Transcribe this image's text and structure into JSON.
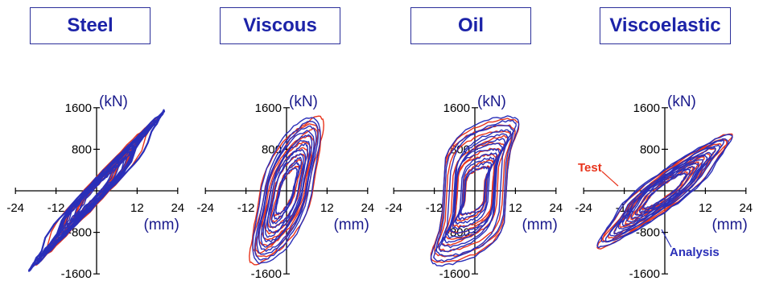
{
  "chart_data": [
    {
      "type": "line",
      "title": "Steel",
      "xlabel": "(mm)",
      "ylabel": "(kN)",
      "xlim": [
        -24,
        24
      ],
      "ylim": [
        -1600,
        1600
      ],
      "x_ticks": [
        "-24",
        "-12",
        "12",
        "24"
      ],
      "y_ticks": [
        "1600",
        "800",
        "-800",
        "-1600"
      ],
      "series": [
        {
          "color": "#e8341c",
          "max_displacement": 18,
          "max_force": 1450,
          "loops": 9,
          "skew": 0.8
        },
        {
          "color": "#2a2fb8",
          "max_displacement": 20,
          "max_force": 1550,
          "loops": 12,
          "skew": 0.82
        }
      ]
    },
    {
      "type": "line",
      "title": "Viscous",
      "xlabel": "(mm)",
      "ylabel": "(kN)",
      "xlim": [
        -24,
        24
      ],
      "ylim": [
        -1600,
        1600
      ],
      "x_ticks": [
        "-24",
        "-12",
        "12",
        "24"
      ],
      "y_ticks": [
        "1600",
        "800",
        "-1600"
      ],
      "series": [
        {
          "color": "#e8341c",
          "max_displacement": 11,
          "max_force": 1450,
          "loops": 9,
          "skew": 0.12
        },
        {
          "color": "#2a2fb8",
          "max_displacement": 10,
          "max_force": 1450,
          "loops": 12,
          "skew": 0.1
        }
      ]
    },
    {
      "type": "line",
      "title": "Oil",
      "xlabel": "(mm)",
      "ylabel": "(kN)",
      "xlim": [
        -24,
        24
      ],
      "ylim": [
        -1600,
        1600
      ],
      "x_ticks": [
        "-24",
        "-12",
        "12",
        "24"
      ],
      "y_ticks": [
        "1600",
        "800",
        "-800",
        "-1600"
      ],
      "series": [
        {
          "color": "#e8341c",
          "max_displacement": 13,
          "max_force": 1400,
          "loops": 9,
          "skew": 0.05
        },
        {
          "color": "#2a2fb8",
          "max_displacement": 13,
          "max_force": 1450,
          "loops": 12,
          "skew": 0.05
        }
      ]
    },
    {
      "type": "line",
      "title": "Viscoelastic",
      "xlabel": "(mm)",
      "ylabel": "(kN)",
      "xlim": [
        -24,
        24
      ],
      "ylim": [
        -1600,
        1600
      ],
      "x_ticks": [
        "-24",
        "-12",
        "12",
        "24"
      ],
      "y_ticks": [
        "1600",
        "800",
        "-800",
        "-1600"
      ],
      "annotations": [
        "Test",
        "Analysis"
      ],
      "series": [
        {
          "name": "Test",
          "color": "#e8341c",
          "max_displacement": 20,
          "max_force": 1150,
          "loops": 9,
          "skew": 0.55
        },
        {
          "name": "Analysis",
          "color": "#2a2fb8",
          "max_displacement": 20,
          "max_force": 1150,
          "loops": 12,
          "skew": 0.55
        }
      ]
    }
  ]
}
